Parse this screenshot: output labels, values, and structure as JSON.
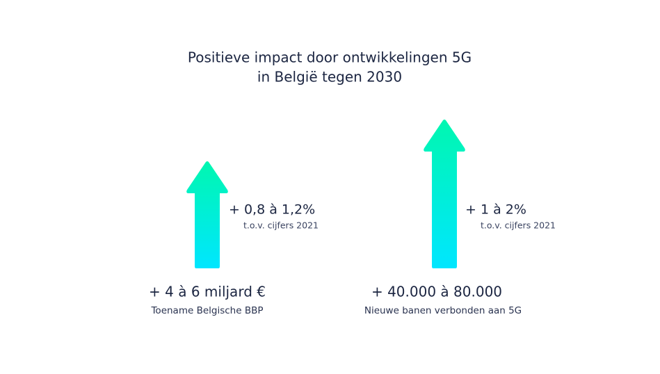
{
  "title": [
    "Positieve impact door ontwikkelingen 5G",
    "in België tegen 2030"
  ],
  "items": [
    {
      "growth": "+ 0,8 à 1,2%",
      "growth_note": "t.o.v. cijfers 2021",
      "headline": "+ 4 à 6 miljard €",
      "subtitle": "Toename Belgische BBP"
    },
    {
      "growth": "+ 1 à 2%",
      "growth_note": "t.o.v. cijfers 2021",
      "headline": "+ 40.000 à 80.000",
      "subtitle": "Nieuwe banen verbonden aan 5G"
    }
  ]
}
